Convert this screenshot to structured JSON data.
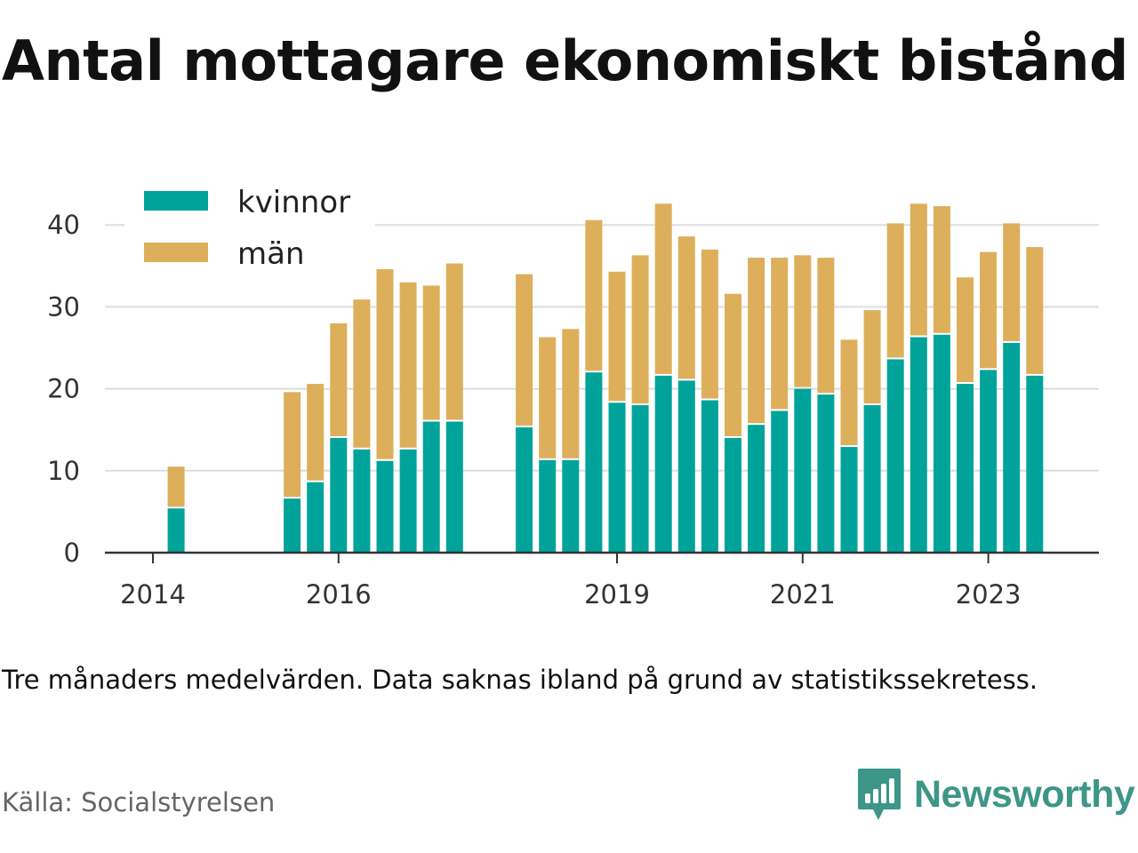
{
  "title": "Antal mottagare ekonomiskt bistånd",
  "note": "Tre månaders medelvärden. Data saknas ibland på grund av statistikssekretess.",
  "source": "Källa: Socialstyrelsen",
  "brand": {
    "name": "Newsworthy",
    "icon": "newsworthy-logo-icon",
    "color": "#3d9688"
  },
  "chart_data": {
    "type": "bar",
    "stacked": true,
    "ylim": [
      0,
      45
    ],
    "yticks": [
      0,
      10,
      20,
      30,
      40
    ],
    "grid": true,
    "legend_position": "top-left",
    "xticks": [
      {
        "label": "2014",
        "slot": 0
      },
      {
        "label": "2016",
        "slot": 8
      },
      {
        "label": "2019",
        "slot": 20
      },
      {
        "label": "2021",
        "slot": 28
      },
      {
        "label": "2023",
        "slot": 36
      }
    ],
    "bar_slots": [
      1,
      6,
      7,
      8,
      9,
      10,
      11,
      12,
      13,
      16,
      17,
      18,
      19,
      20,
      21,
      22,
      23,
      24,
      25,
      26,
      27,
      28,
      29,
      30,
      31,
      32,
      33,
      34,
      35,
      36,
      37,
      38
    ],
    "series": [
      {
        "name": "kvinnor",
        "color": "#00a39a",
        "values": [
          5.4,
          6.6,
          8.6,
          14,
          12.6,
          11.2,
          12.6,
          16,
          16,
          15.3,
          11.3,
          11.3,
          22,
          18.3,
          18,
          21.6,
          21,
          18.6,
          14,
          15.6,
          17.3,
          20,
          19.3,
          12.9,
          18,
          23.6,
          26.3,
          26.6,
          20.6,
          22.3,
          25.6,
          21.6
        ]
      },
      {
        "name": "män",
        "color": "#ddaf5b",
        "values": [
          5.1,
          13,
          12,
          14,
          18.3,
          23.4,
          20.4,
          16.6,
          19.3,
          18.7,
          15,
          16,
          18.6,
          16,
          18.3,
          21,
          17.6,
          18.4,
          17.6,
          20.4,
          18.7,
          16.3,
          16.7,
          13.1,
          11.6,
          16.6,
          16.3,
          15.7,
          13,
          14.4,
          14.6,
          15.7
        ]
      }
    ]
  }
}
